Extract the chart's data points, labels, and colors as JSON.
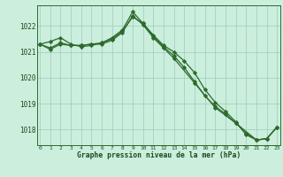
{
  "line1": {
    "x": [
      0,
      1,
      2,
      3,
      4,
      5,
      6,
      7,
      8,
      9,
      10,
      11,
      12,
      13,
      14,
      15,
      16,
      17,
      18,
      19,
      20,
      21,
      22,
      23
    ],
    "y": [
      1021.3,
      1021.4,
      1021.55,
      1021.3,
      1021.2,
      1021.25,
      1021.35,
      1021.55,
      1021.85,
      1022.55,
      1022.1,
      1021.65,
      1021.25,
      1021.0,
      1020.65,
      1020.2,
      1019.55,
      1019.05,
      1018.7,
      1018.3,
      1017.8,
      1017.6,
      1017.65,
      1018.1
    ]
  },
  "line2": {
    "x": [
      0,
      1,
      2,
      3,
      4,
      5,
      6,
      7,
      8,
      9,
      10,
      11,
      12,
      13,
      14,
      15,
      16,
      17,
      18,
      19,
      20,
      21,
      22,
      23
    ],
    "y": [
      1021.3,
      1021.15,
      1021.35,
      1021.25,
      1021.25,
      1021.3,
      1021.35,
      1021.5,
      1021.8,
      1022.35,
      1022.1,
      1021.6,
      1021.2,
      1020.85,
      1020.4,
      1019.85,
      1019.3,
      1018.9,
      1018.6,
      1018.25,
      1017.85,
      1017.6,
      1017.65,
      1018.1
    ]
  },
  "line3": {
    "x": [
      0,
      1,
      2,
      3,
      4,
      5,
      6,
      7,
      8,
      9,
      10,
      11,
      12,
      13,
      15,
      17,
      19,
      21,
      22,
      23
    ],
    "y": [
      1021.3,
      1021.1,
      1021.3,
      1021.25,
      1021.25,
      1021.3,
      1021.3,
      1021.45,
      1021.75,
      1022.4,
      1022.05,
      1021.55,
      1021.15,
      1020.75,
      1019.8,
      1018.85,
      1018.25,
      1017.6,
      1017.65,
      1018.1
    ]
  },
  "line_color": "#2d6a2d",
  "bg_color": "#cceedd",
  "grid_color": "#99ccbb",
  "text_color": "#1a4a1a",
  "ylim": [
    1017.4,
    1022.8
  ],
  "yticks": [
    1018,
    1019,
    1020,
    1021,
    1022
  ],
  "xlim": [
    -0.3,
    23.3
  ],
  "xticks": [
    0,
    1,
    2,
    3,
    4,
    5,
    6,
    7,
    8,
    9,
    10,
    11,
    12,
    13,
    14,
    15,
    16,
    17,
    18,
    19,
    20,
    21,
    22,
    23
  ],
  "xlabel": "Graphe pression niveau de la mer (hPa)",
  "marker": "D",
  "markersize": 2.2,
  "linewidth": 0.9
}
